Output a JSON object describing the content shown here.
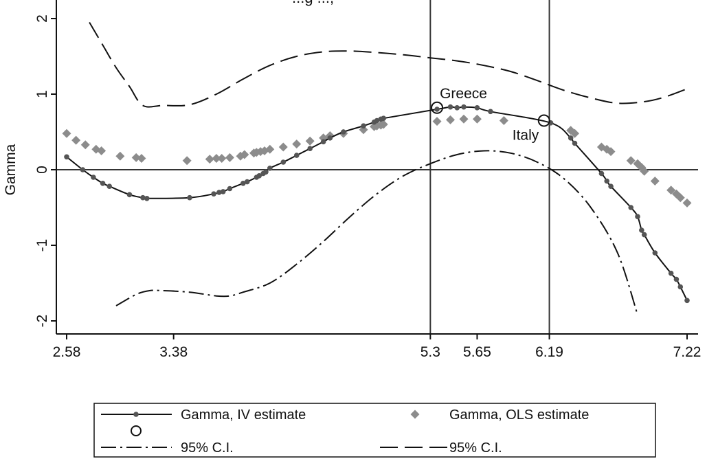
{
  "chart_data": {
    "type": "line",
    "title": "...g ...,",
    "ylabel": "Gamma",
    "xlabel": "",
    "xlim": [
      2.5,
      7.3
    ],
    "ylim": [
      -2.2,
      2.1
    ],
    "x_ticks": [
      2.58,
      3.38,
      5.3,
      5.65,
      6.19,
      7.22
    ],
    "x_tick_labels": [
      "2.58",
      "3.38",
      "5.3",
      "5.65",
      "6.19",
      "7.22"
    ],
    "y_ticks": [
      -2,
      -1,
      0,
      1,
      2
    ],
    "y_tick_labels": [
      "-2",
      "-1",
      "0",
      "1",
      "2"
    ],
    "vertical_lines": [
      5.3,
      6.19
    ],
    "horizontal_lines": [
      0
    ],
    "series": [
      {
        "name": "Gamma, IV estimate",
        "style": "solid-dots",
        "color": "#555555",
        "x": [
          2.58,
          2.7,
          2.78,
          2.85,
          2.9,
          3.05,
          3.15,
          3.18,
          3.5,
          3.68,
          3.72,
          3.75,
          3.8,
          3.9,
          3.93,
          4.0,
          4.02,
          4.05,
          4.07,
          4.1,
          4.2,
          4.3,
          4.4,
          4.5,
          4.55,
          4.65,
          4.8,
          4.88,
          4.9,
          4.93,
          4.95,
          5.35,
          5.45,
          5.5,
          5.55,
          5.65,
          5.75,
          6.2,
          6.35,
          6.38,
          6.58,
          6.62,
          6.65,
          6.8,
          6.85,
          6.88,
          6.9,
          6.98,
          7.1,
          7.14,
          7.17,
          7.22
        ],
        "y": [
          0.17,
          0.0,
          -0.1,
          -0.18,
          -0.22,
          -0.33,
          -0.37,
          -0.38,
          -0.37,
          -0.32,
          -0.3,
          -0.29,
          -0.25,
          -0.18,
          -0.16,
          -0.1,
          -0.08,
          -0.05,
          -0.03,
          0.02,
          0.1,
          0.19,
          0.28,
          0.37,
          0.42,
          0.5,
          0.58,
          0.63,
          0.65,
          0.67,
          0.68,
          0.8,
          0.83,
          0.82,
          0.83,
          0.82,
          0.77,
          0.62,
          0.42,
          0.35,
          -0.05,
          -0.15,
          -0.22,
          -0.5,
          -0.62,
          -0.8,
          -0.86,
          -1.1,
          -1.37,
          -1.45,
          -1.55,
          -1.73
        ]
      },
      {
        "name": "Gamma, OLS estimate",
        "style": "diamonds",
        "color": "#8c8c8c",
        "x": [
          2.58,
          2.65,
          2.72,
          2.8,
          2.84,
          2.98,
          3.1,
          3.14,
          3.48,
          3.65,
          3.7,
          3.74,
          3.8,
          3.88,
          3.91,
          3.98,
          4.0,
          4.03,
          4.06,
          4.1,
          4.2,
          4.3,
          4.4,
          4.5,
          4.55,
          4.65,
          4.8,
          4.88,
          4.9,
          4.93,
          4.95,
          5.35,
          5.45,
          5.55,
          5.65,
          5.85,
          6.35,
          6.38,
          6.58,
          6.62,
          6.65,
          6.8,
          6.85,
          6.88,
          6.9,
          6.98,
          7.1,
          7.14,
          7.17,
          7.22
        ],
        "y": [
          0.48,
          0.39,
          0.33,
          0.27,
          0.25,
          0.18,
          0.16,
          0.15,
          0.12,
          0.14,
          0.15,
          0.15,
          0.16,
          0.18,
          0.2,
          0.22,
          0.23,
          0.24,
          0.25,
          0.27,
          0.3,
          0.34,
          0.38,
          0.42,
          0.45,
          0.48,
          0.53,
          0.57,
          0.58,
          0.59,
          0.6,
          0.64,
          0.66,
          0.67,
          0.67,
          0.65,
          0.52,
          0.48,
          0.3,
          0.27,
          0.24,
          0.12,
          0.08,
          0.03,
          -0.02,
          -0.15,
          -0.27,
          -0.32,
          -0.37,
          -0.44
        ]
      },
      {
        "name": "95% C.I.",
        "style": "dash-dot",
        "color": "#111111",
        "x": [
          2.95,
          3.1,
          3.2,
          3.3,
          3.5,
          3.7,
          3.8,
          3.9,
          4.1,
          4.3,
          4.5,
          4.7,
          4.9,
          5.1,
          5.3,
          5.5,
          5.7,
          5.9,
          6.1,
          6.3,
          6.5,
          6.7,
          6.85
        ],
        "y": [
          -1.8,
          -1.65,
          -1.6,
          -1.6,
          -1.62,
          -1.67,
          -1.67,
          -1.62,
          -1.5,
          -1.25,
          -0.95,
          -0.62,
          -0.32,
          -0.08,
          0.08,
          0.2,
          0.25,
          0.22,
          0.1,
          -0.12,
          -0.5,
          -1.1,
          -1.92
        ]
      },
      {
        "name": "95% C.I.",
        "style": "long-dash",
        "color": "#111111",
        "x": [
          2.75,
          2.85,
          2.95,
          3.05,
          3.15,
          3.3,
          3.5,
          3.7,
          3.9,
          4.1,
          4.3,
          4.5,
          4.7,
          4.9,
          5.1,
          5.3,
          5.5,
          5.7,
          5.9,
          6.1,
          6.3,
          6.5,
          6.7,
          6.9,
          7.05,
          7.22
        ],
        "y": [
          1.95,
          1.65,
          1.35,
          1.1,
          0.85,
          0.85,
          0.86,
          1.0,
          1.2,
          1.38,
          1.5,
          1.56,
          1.57,
          1.55,
          1.52,
          1.48,
          1.44,
          1.38,
          1.3,
          1.18,
          1.05,
          0.95,
          0.88,
          0.9,
          0.96,
          1.07
        ]
      }
    ],
    "annotations": [
      {
        "label": "Greece",
        "x": 5.35,
        "y": 0.82
      },
      {
        "label": "Italy",
        "x": 6.15,
        "y": 0.65
      }
    ],
    "legend": {
      "placement": "bottom",
      "entries": [
        {
          "label": "Gamma, IV estimate",
          "style": "solid-dots"
        },
        {
          "label": "Gamma, OLS estimate",
          "style": "diamonds"
        },
        {
          "label": "",
          "style": "circle-marker"
        },
        {
          "label": "95% C.I.",
          "style": "dash-dot"
        },
        {
          "label": "95% C.I.",
          "style": "long-dash"
        }
      ]
    }
  }
}
